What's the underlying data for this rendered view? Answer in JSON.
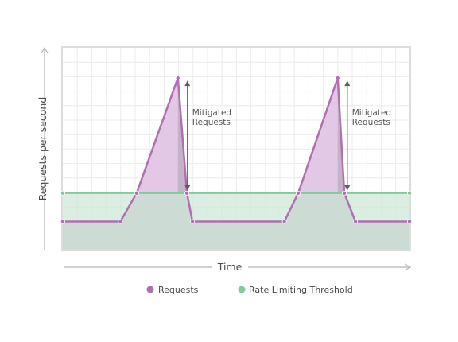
{
  "chart_data": {
    "type": "area",
    "xlabel": "Time",
    "ylabel": "Requests per second",
    "xlim": [
      0,
      100
    ],
    "ylim": [
      0,
      100
    ],
    "grid": true,
    "legend_position": "bottom",
    "series": [
      {
        "name": "Requests",
        "color": "#b06fb0",
        "points": [
          [
            0,
            14
          ],
          [
            16.6,
            14
          ],
          [
            21.3,
            28
          ],
          [
            33.2,
            85
          ],
          [
            35.8,
            28
          ],
          [
            37.4,
            14
          ],
          [
            63.9,
            14
          ],
          [
            67.9,
            28
          ],
          [
            79.3,
            85
          ],
          [
            81.2,
            28
          ],
          [
            84.4,
            14
          ],
          [
            100,
            14
          ]
        ]
      },
      {
        "name": "Rate Limiting Threshold",
        "color": "#82c99e",
        "points": [
          [
            0,
            28
          ],
          [
            100,
            28
          ]
        ]
      }
    ],
    "annotations": [
      {
        "text": "Mitigated Requests",
        "x": 33.2,
        "y_from": 28,
        "y_to": 85
      },
      {
        "text": "Mitigated Requests",
        "x": 79.3,
        "y_from": 28,
        "y_to": 85
      }
    ]
  }
}
